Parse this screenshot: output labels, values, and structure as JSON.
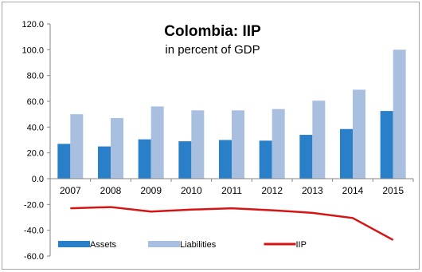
{
  "chart_data": {
    "type": "bar",
    "title": "Colombia: IIP",
    "subtitle": "in percent of GDP",
    "xlabel": "",
    "ylabel": "",
    "categories": [
      "2007",
      "2008",
      "2009",
      "2010",
      "2011",
      "2012",
      "2013",
      "2014",
      "2015"
    ],
    "ylim": [
      -60,
      120
    ],
    "yticks": [
      "-60.0",
      "-40.0",
      "-20.0",
      "0.0",
      "20.0",
      "40.0",
      "60.0",
      "80.0",
      "100.0",
      "120.0"
    ],
    "grid": false,
    "legend_position": "bottom-left",
    "series": [
      {
        "name": "Assets",
        "type": "bar",
        "color": "#2a7fc9",
        "values": [
          27,
          25,
          30.5,
          29,
          30,
          29.5,
          34,
          38.5,
          52.5
        ]
      },
      {
        "name": "Liabilities",
        "type": "bar",
        "color": "#a9bfdf",
        "values": [
          50,
          47,
          56,
          53,
          53,
          54,
          60.5,
          69,
          100
        ]
      },
      {
        "name": "IIP",
        "type": "line",
        "color": "#d61414",
        "values": [
          -23,
          -22,
          -25.5,
          -24,
          -23,
          -24.5,
          -26.5,
          -30.5,
          -47.5
        ]
      }
    ]
  }
}
